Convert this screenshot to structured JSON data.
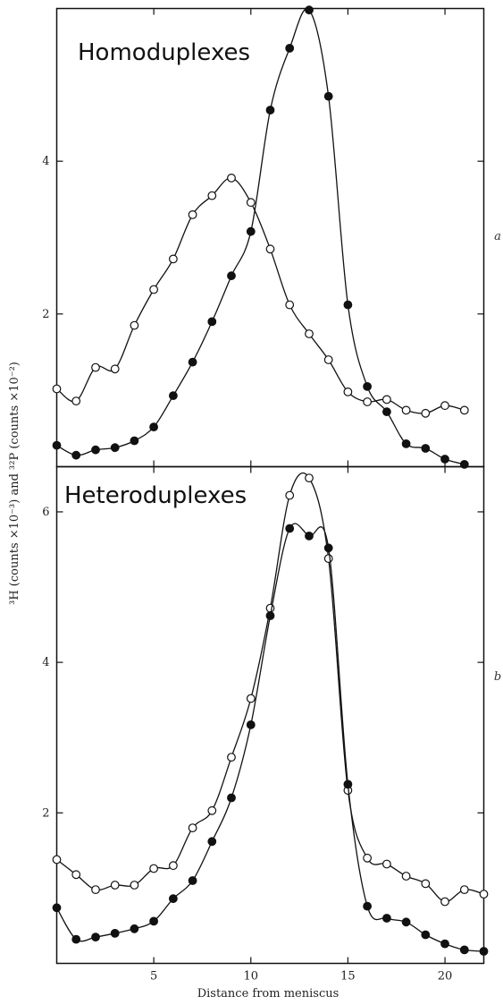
{
  "chart_data": [
    {
      "type": "line",
      "title": "Homoduplexes",
      "panel_letter": "a",
      "xlabel": "Distance from meniscus",
      "ylabel": "³H (counts ×10⁻³) and ³²P (counts ×10⁻²)",
      "xlim": [
        0,
        22
      ],
      "ylim": [
        0,
        6
      ],
      "xticks": [
        5,
        10,
        15,
        20
      ],
      "yticks": [
        2,
        4
      ],
      "grid": false,
      "series": [
        {
          "marker": "open-circle",
          "x": [
            0,
            1,
            2,
            3,
            4,
            5,
            6,
            7,
            8,
            9,
            10,
            11,
            12,
            13,
            14,
            15,
            16,
            17,
            18,
            19,
            20,
            21
          ],
          "y": [
            1.02,
            0.86,
            1.3,
            1.28,
            1.85,
            2.32,
            2.72,
            3.3,
            3.55,
            3.78,
            3.46,
            2.85,
            2.12,
            1.74,
            1.4,
            0.98,
            0.85,
            0.88,
            0.74,
            0.7,
            0.8,
            0.74
          ]
        },
        {
          "marker": "filled-circle",
          "x": [
            0,
            1,
            2,
            3,
            4,
            5,
            6,
            7,
            8,
            9,
            10,
            11,
            12,
            13,
            14,
            15,
            16,
            17,
            18,
            19,
            20,
            21
          ],
          "y": [
            0.28,
            0.15,
            0.22,
            0.25,
            0.34,
            0.52,
            0.93,
            1.37,
            1.9,
            2.5,
            3.08,
            4.67,
            5.48,
            5.98,
            4.85,
            2.12,
            1.05,
            0.72,
            0.3,
            0.24,
            0.1,
            0.03
          ]
        }
      ]
    },
    {
      "type": "line",
      "title": "Heteroduplexes",
      "panel_letter": "b",
      "xlabel": "Distance from meniscus",
      "ylabel": "³H (counts ×10⁻³) and ³²P (counts ×10⁻²)",
      "xlim": [
        0,
        22
      ],
      "ylim": [
        0,
        6.6
      ],
      "xticks": [
        5,
        10,
        15,
        20
      ],
      "yticks": [
        2,
        4,
        6
      ],
      "grid": false,
      "series": [
        {
          "marker": "open-circle",
          "x": [
            0,
            1,
            2,
            3,
            4,
            5,
            6,
            7,
            8,
            9,
            10,
            11,
            12,
            13,
            14,
            15,
            16,
            17,
            18,
            19,
            20,
            21,
            22
          ],
          "y": [
            1.38,
            1.18,
            0.98,
            1.04,
            1.04,
            1.26,
            1.3,
            1.8,
            2.03,
            2.74,
            3.52,
            4.72,
            6.22,
            6.45,
            5.38,
            2.3,
            1.4,
            1.32,
            1.16,
            1.06,
            0.82,
            0.98,
            0.92
          ]
        },
        {
          "marker": "filled-circle",
          "x": [
            0,
            1,
            2,
            3,
            4,
            5,
            6,
            7,
            8,
            9,
            10,
            11,
            12,
            13,
            14,
            15,
            16,
            17,
            18,
            19,
            20,
            21,
            22
          ],
          "y": [
            0.74,
            0.32,
            0.35,
            0.4,
            0.46,
            0.56,
            0.86,
            1.1,
            1.62,
            2.2,
            3.17,
            4.62,
            5.78,
            5.68,
            5.52,
            2.38,
            0.76,
            0.6,
            0.55,
            0.38,
            0.26,
            0.18,
            0.16
          ]
        }
      ]
    }
  ]
}
